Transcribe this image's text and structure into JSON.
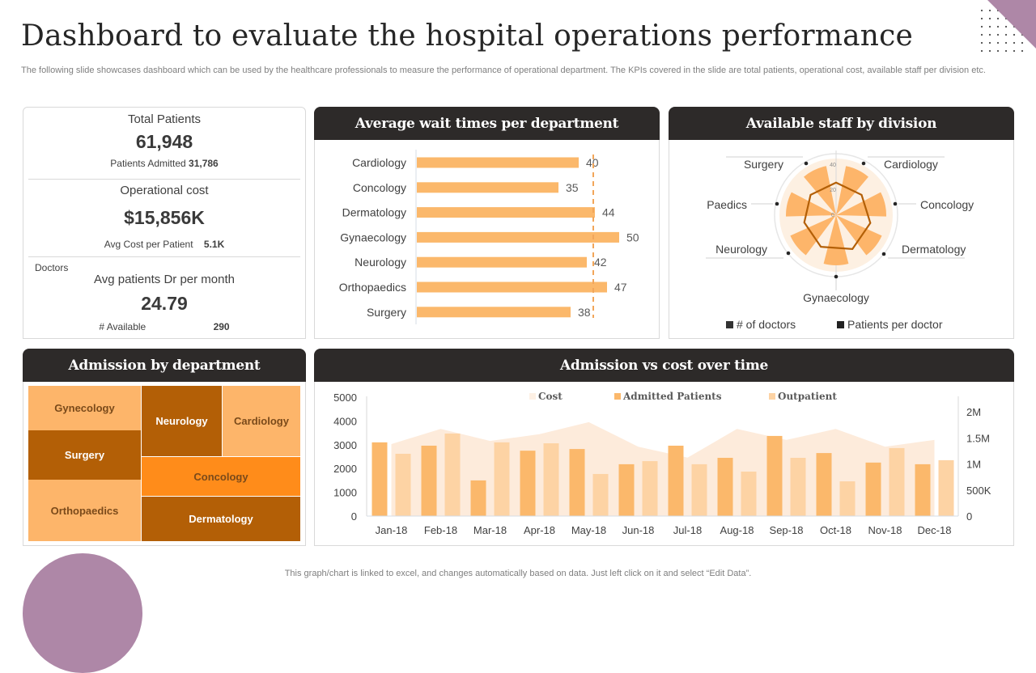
{
  "header": {
    "title": "Dashboard to evaluate the hospital operations performance",
    "subtitle": "The following slide showcases dashboard which can be used by the healthcare professionals to measure the performance of operational department. The KPIs covered in the slide are total patients, operational cost, available staff per division etc."
  },
  "kpi": {
    "total_patients_label": "Total Patients",
    "total_patients_value": "61,948",
    "patients_admitted_label": "Patients Admitted",
    "patients_admitted_value": "31,786",
    "operational_cost_label": "Operational cost",
    "operational_cost_value": "$15,856K",
    "avg_cost_label": "Avg  Cost per Patient",
    "avg_cost_value": "5.1K",
    "doctors_label": "Doctors",
    "avg_patients_label": "Avg patients Dr per month",
    "avg_patients_value": "24.79",
    "available_label": "# Available",
    "available_value": "290"
  },
  "colors": {
    "header_bg": "#2d2a29",
    "bar_orange": "#fbb86b",
    "outpatient": "#fdd3a4",
    "cost_area": "#fdebdb",
    "dark_brown": "#b35f06",
    "bright_orange": "#ff8c1a",
    "light_orange": "#fdb56a",
    "accent_purple": "#ae87a7"
  },
  "chart_data": [
    {
      "type": "bar",
      "title": "Average wait times per department",
      "orientation": "horizontal",
      "categories": [
        "Cardiology",
        "Concology",
        "Dermatology",
        "Gynaecology",
        "Neurology",
        "Orthopaedics",
        "Surgery"
      ],
      "values": [
        40,
        35,
        44,
        50,
        42,
        47,
        38
      ],
      "reference_line": 44,
      "xlim": [
        0,
        55
      ]
    },
    {
      "type": "radar",
      "title": "Available staff by division",
      "categories": [
        "Cardiology",
        "Concology",
        "Dermatology",
        "Gynaecology",
        "Neurology",
        "Paedics",
        "Surgery"
      ],
      "radial_ticks": [
        "0",
        "20",
        "40"
      ],
      "rlim": [
        0,
        50
      ],
      "series": [
        {
          "name": "# of doctors",
          "values": [
            40,
            40,
            40,
            40,
            40,
            40,
            40
          ]
        },
        {
          "name": "Patients per doctor",
          "values": [
            26,
            26,
            28,
            30,
            28,
            26,
            26
          ]
        }
      ],
      "legend": [
        "# of doctors",
        "Patients per doctor"
      ],
      "legend_position": "bottom"
    },
    {
      "type": "treemap",
      "title": "Admission by department",
      "items": [
        {
          "label": "Gynecology",
          "color": "#fdb56a",
          "text": "#7a4a1a"
        },
        {
          "label": "Surgery",
          "color": "#b35f06",
          "text": "#ffffff"
        },
        {
          "label": "Orthopaedics",
          "color": "#fdb56a",
          "text": "#7a4a1a"
        },
        {
          "label": "Neurology",
          "color": "#b35f06",
          "text": "#ffffff"
        },
        {
          "label": "Cardiology",
          "color": "#fdb56a",
          "text": "#7a4a1a"
        },
        {
          "label": "Concology",
          "color": "#ff8c1a",
          "text": "#7a4a1a"
        },
        {
          "label": "Dermatology",
          "color": "#b35f06",
          "text": "#ffffff"
        }
      ]
    },
    {
      "type": "bar",
      "title": "Admission vs cost over time",
      "categories": [
        "Jan-18",
        "Feb-18",
        "Mar-18",
        "Apr-18",
        "May-18",
        "Jun-18",
        "Jul-18",
        "Aug-18",
        "Sep-18",
        "Oct-18",
        "Nov-18",
        "Dec-18"
      ],
      "series": [
        {
          "name": "Cost",
          "type": "area",
          "axis": "right",
          "values": [
            1380000,
            1670000,
            1440000,
            1570000,
            1800000,
            1330000,
            1120000,
            1670000,
            1460000,
            1670000,
            1330000,
            1460000
          ]
        },
        {
          "name": "Admitted Patients",
          "type": "bar",
          "axis": "left",
          "values": [
            3100,
            2960,
            1500,
            2750,
            2820,
            2180,
            2960,
            2450,
            3370,
            2650,
            2250,
            2180
          ]
        },
        {
          "name": "Outpatient",
          "type": "bar",
          "axis": "left",
          "values": [
            2620,
            3470,
            3100,
            3060,
            1770,
            2310,
            2180,
            1870,
            2450,
            1460,
            2860,
            2350
          ]
        }
      ],
      "ylim": [
        0,
        5000
      ],
      "yticks": [
        "0",
        "1000",
        "2000",
        "3000",
        "4000",
        "5000"
      ],
      "y2lim": [
        0,
        2000000
      ],
      "y2ticks": [
        "0",
        "500K",
        "1M",
        "1.5M",
        "2M"
      ],
      "legend_position": "top"
    }
  ],
  "footer": {
    "note": "This graph/chart is linked to excel,  and changes automatically based on data. Just left click on it and select “Edit Data”."
  }
}
